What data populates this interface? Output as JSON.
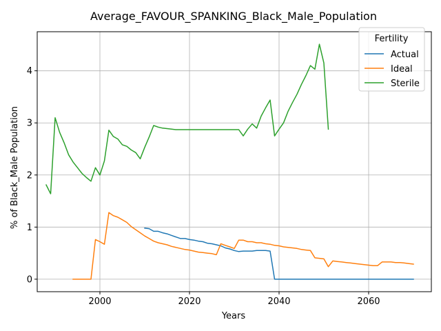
{
  "chart_data": {
    "type": "line",
    "title": "Average_FAVOUR_SPANKING_Black_Male_Population",
    "xlabel": "Years",
    "ylabel": "% of Black_Male Population",
    "xlim": [
      1986,
      2074
    ],
    "ylim": [
      -0.24,
      4.75
    ],
    "x_ticks": [
      2000,
      2020,
      2040,
      2060
    ],
    "y_ticks": [
      0,
      1,
      2,
      3,
      4
    ],
    "grid": true,
    "legend": {
      "title": "Fertility",
      "placement": "top-right"
    },
    "series": [
      {
        "name": "Actual",
        "color": "#1f77b4",
        "points": [
          [
            2010,
            0.98
          ],
          [
            2011,
            0.97
          ],
          [
            2012,
            0.92
          ],
          [
            2013,
            0.92
          ],
          [
            2014,
            0.89
          ],
          [
            2015,
            0.87
          ],
          [
            2016,
            0.84
          ],
          [
            2017,
            0.81
          ],
          [
            2018,
            0.78
          ],
          [
            2019,
            0.78
          ],
          [
            2020,
            0.76
          ],
          [
            2021,
            0.75
          ],
          [
            2022,
            0.73
          ],
          [
            2023,
            0.72
          ],
          [
            2024,
            0.69
          ],
          [
            2025,
            0.68
          ],
          [
            2026,
            0.66
          ],
          [
            2027,
            0.64
          ],
          [
            2028,
            0.6
          ],
          [
            2029,
            0.58
          ],
          [
            2030,
            0.55
          ],
          [
            2031,
            0.53
          ],
          [
            2032,
            0.54
          ],
          [
            2033,
            0.54
          ],
          [
            2034,
            0.54
          ],
          [
            2035,
            0.55
          ],
          [
            2036,
            0.55
          ],
          [
            2037,
            0.55
          ],
          [
            2038,
            0.54
          ],
          [
            2039,
            0.0
          ],
          [
            2040,
            0.0
          ],
          [
            2045,
            0.0
          ],
          [
            2050,
            0.0
          ],
          [
            2055,
            0.0
          ],
          [
            2060,
            0.0
          ],
          [
            2065,
            0.0
          ],
          [
            2070,
            0.0
          ]
        ]
      },
      {
        "name": "Ideal",
        "color": "#ff7f0e",
        "points": [
          [
            1994,
            0.0
          ],
          [
            1996,
            0.0
          ],
          [
            1998,
            0.0
          ],
          [
            1999,
            0.76
          ],
          [
            2000,
            0.72
          ],
          [
            2001,
            0.67
          ],
          [
            2002,
            1.28
          ],
          [
            2003,
            1.22
          ],
          [
            2004,
            1.19
          ],
          [
            2005,
            1.14
          ],
          [
            2006,
            1.09
          ],
          [
            2007,
            1.01
          ],
          [
            2008,
            0.95
          ],
          [
            2009,
            0.89
          ],
          [
            2010,
            0.83
          ],
          [
            2011,
            0.78
          ],
          [
            2012,
            0.73
          ],
          [
            2013,
            0.7
          ],
          [
            2014,
            0.68
          ],
          [
            2015,
            0.66
          ],
          [
            2016,
            0.63
          ],
          [
            2017,
            0.61
          ],
          [
            2018,
            0.59
          ],
          [
            2019,
            0.57
          ],
          [
            2020,
            0.56
          ],
          [
            2021,
            0.54
          ],
          [
            2022,
            0.52
          ],
          [
            2023,
            0.51
          ],
          [
            2024,
            0.5
          ],
          [
            2025,
            0.49
          ],
          [
            2026,
            0.47
          ],
          [
            2027,
            0.68
          ],
          [
            2028,
            0.65
          ],
          [
            2029,
            0.62
          ],
          [
            2030,
            0.59
          ],
          [
            2031,
            0.75
          ],
          [
            2032,
            0.75
          ],
          [
            2033,
            0.72
          ],
          [
            2034,
            0.72
          ],
          [
            2035,
            0.7
          ],
          [
            2036,
            0.7
          ],
          [
            2037,
            0.68
          ],
          [
            2038,
            0.67
          ],
          [
            2039,
            0.65
          ],
          [
            2040,
            0.64
          ],
          [
            2041,
            0.62
          ],
          [
            2042,
            0.61
          ],
          [
            2043,
            0.6
          ],
          [
            2044,
            0.59
          ],
          [
            2045,
            0.57
          ],
          [
            2046,
            0.56
          ],
          [
            2047,
            0.55
          ],
          [
            2048,
            0.41
          ],
          [
            2049,
            0.4
          ],
          [
            2050,
            0.39
          ],
          [
            2051,
            0.24
          ],
          [
            2052,
            0.35
          ],
          [
            2053,
            0.34
          ],
          [
            2054,
            0.33
          ],
          [
            2055,
            0.32
          ],
          [
            2056,
            0.31
          ],
          [
            2057,
            0.3
          ],
          [
            2058,
            0.29
          ],
          [
            2059,
            0.28
          ],
          [
            2060,
            0.27
          ],
          [
            2061,
            0.26
          ],
          [
            2062,
            0.26
          ],
          [
            2063,
            0.33
          ],
          [
            2064,
            0.33
          ],
          [
            2065,
            0.33
          ],
          [
            2066,
            0.32
          ],
          [
            2067,
            0.32
          ],
          [
            2068,
            0.31
          ],
          [
            2069,
            0.3
          ],
          [
            2070,
            0.29
          ]
        ]
      },
      {
        "name": "Sterile",
        "color": "#2ca02c",
        "points": [
          [
            1988,
            1.81
          ],
          [
            1989,
            1.64
          ],
          [
            1990,
            3.1
          ],
          [
            1991,
            2.82
          ],
          [
            1992,
            2.62
          ],
          [
            1993,
            2.39
          ],
          [
            1994,
            2.25
          ],
          [
            1995,
            2.14
          ],
          [
            1996,
            2.03
          ],
          [
            1997,
            1.95
          ],
          [
            1998,
            1.88
          ],
          [
            1999,
            2.14
          ],
          [
            2000,
            2.0
          ],
          [
            2001,
            2.27
          ],
          [
            2002,
            2.86
          ],
          [
            2003,
            2.74
          ],
          [
            2004,
            2.69
          ],
          [
            2005,
            2.58
          ],
          [
            2006,
            2.55
          ],
          [
            2007,
            2.48
          ],
          [
            2008,
            2.43
          ],
          [
            2009,
            2.31
          ],
          [
            2010,
            2.53
          ],
          [
            2011,
            2.73
          ],
          [
            2012,
            2.95
          ],
          [
            2013,
            2.92
          ],
          [
            2014,
            2.9
          ],
          [
            2015,
            2.89
          ],
          [
            2016,
            2.88
          ],
          [
            2017,
            2.87
          ],
          [
            2018,
            2.87
          ],
          [
            2020,
            2.87
          ],
          [
            2025,
            2.87
          ],
          [
            2030,
            2.87
          ],
          [
            2031,
            2.87
          ],
          [
            2032,
            2.75
          ],
          [
            2033,
            2.88
          ],
          [
            2034,
            2.98
          ],
          [
            2035,
            2.9
          ],
          [
            2036,
            3.13
          ],
          [
            2037,
            3.29
          ],
          [
            2038,
            3.44
          ],
          [
            2039,
            2.75
          ],
          [
            2040,
            2.88
          ],
          [
            2041,
            3.0
          ],
          [
            2042,
            3.22
          ],
          [
            2043,
            3.39
          ],
          [
            2044,
            3.55
          ],
          [
            2045,
            3.74
          ],
          [
            2046,
            3.91
          ],
          [
            2047,
            4.1
          ],
          [
            2048,
            4.03
          ],
          [
            2049,
            4.51
          ],
          [
            2050,
            4.15
          ],
          [
            2051,
            2.88
          ]
        ]
      }
    ]
  }
}
